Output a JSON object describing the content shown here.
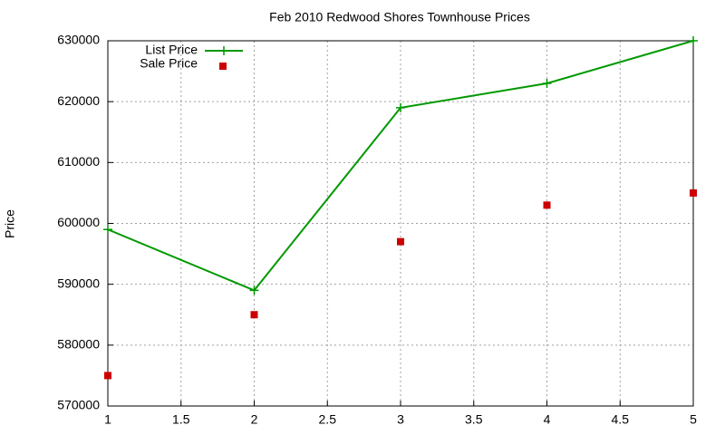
{
  "chart_data": {
    "type": "line",
    "title": "Feb 2010 Redwood Shores Townhouse Prices",
    "y_label": "Price",
    "x": [
      1,
      2,
      3,
      4,
      5
    ],
    "series": [
      {
        "name": "List Price",
        "color": "#009900",
        "style": "linespoints",
        "values": [
          599000,
          589000,
          619000,
          623000,
          630000
        ]
      },
      {
        "name": "Sale Price",
        "color": "#cc0000",
        "style": "points",
        "values": [
          575000,
          585000,
          597000,
          603000,
          605000
        ]
      }
    ],
    "xlim": [
      1,
      5
    ],
    "xticks": [
      1,
      1.5,
      2,
      2.5,
      3,
      3.5,
      4,
      4.5,
      5
    ],
    "ylim": [
      570000,
      630000
    ],
    "yticks": [
      570000,
      580000,
      590000,
      600000,
      610000,
      620000,
      630000
    ],
    "grid": true,
    "legend": "top-left"
  }
}
